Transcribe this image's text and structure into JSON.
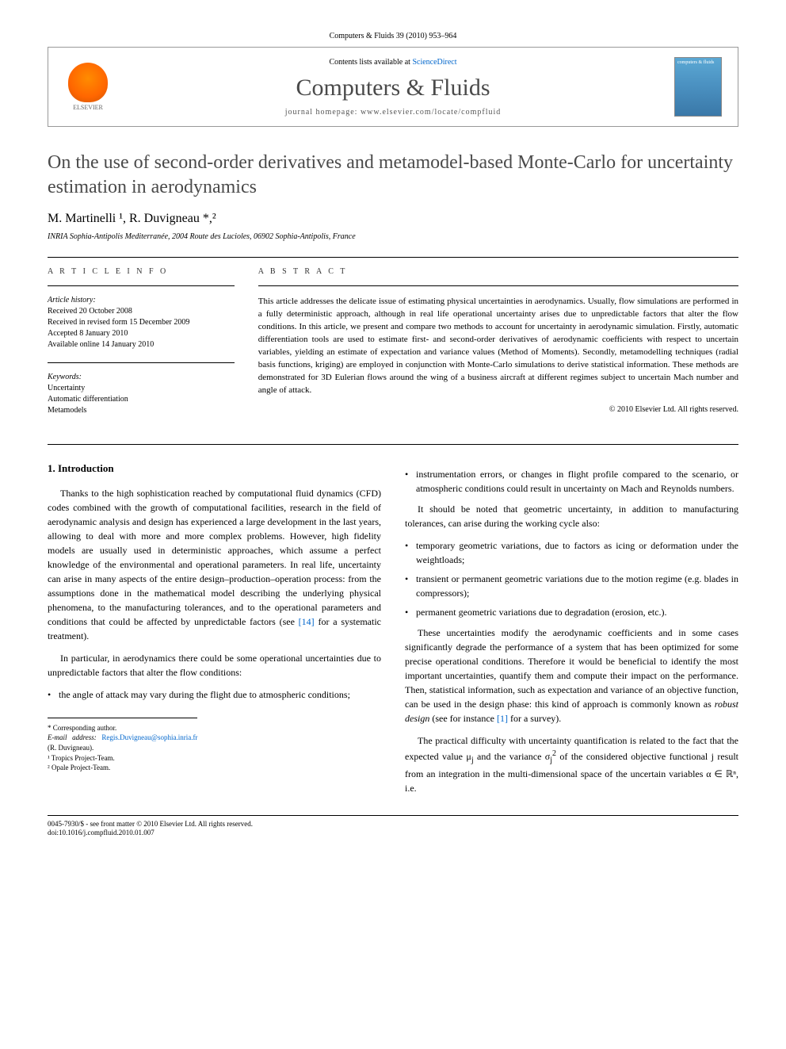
{
  "journal_ref": "Computers & Fluids 39 (2010) 953–964",
  "sciencedirect": {
    "contents_prefix": "Contents lists available at ",
    "contents_link": "ScienceDirect",
    "journal_name": "Computers & Fluids",
    "homepage_prefix": "journal homepage: ",
    "homepage_url": "www.elsevier.com/locate/compfluid",
    "publisher": "ELSEVIER",
    "cover_text": "computers & fluids"
  },
  "title": "On the use of second-order derivatives and metamodel-based Monte-Carlo for uncertainty estimation in aerodynamics",
  "authors": "M. Martinelli ¹, R. Duvigneau *,²",
  "affiliation": "INRIA Sophia-Antipolis Mediterranée, 2004 Route des Lucioles, 06902 Sophia-Antipolis, France",
  "article_info": {
    "label": "A R T I C L E   I N F O",
    "history_heading": "Article history:",
    "received": "Received 20 October 2008",
    "revised": "Received in revised form 15 December 2009",
    "accepted": "Accepted 8 January 2010",
    "online": "Available online 14 January 2010",
    "keywords_heading": "Keywords:",
    "kw1": "Uncertainty",
    "kw2": "Automatic differentiation",
    "kw3": "Metamodels"
  },
  "abstract": {
    "label": "A B S T R A C T",
    "text": "This article addresses the delicate issue of estimating physical uncertainties in aerodynamics. Usually, flow simulations are performed in a fully deterministic approach, although in real life operational uncertainty arises due to unpredictable factors that alter the flow conditions. In this article, we present and compare two methods to account for uncertainty in aerodynamic simulation. Firstly, automatic differentiation tools are used to estimate first- and second-order derivatives of aerodynamic coefficients with respect to uncertain variables, yielding an estimate of expectation and variance values (Method of Moments). Secondly, metamodelling techniques (radial basis functions, kriging) are employed in conjunction with Monte-Carlo simulations to derive statistical information. These methods are demonstrated for 3D Eulerian flows around the wing of a business aircraft at different regimes subject to uncertain Mach number and angle of attack.",
    "copyright": "© 2010 Elsevier Ltd. All rights reserved."
  },
  "body": {
    "intro_heading": "1. Introduction",
    "p1": "Thanks to the high sophistication reached by computational fluid dynamics (CFD) codes combined with the growth of computational facilities, research in the field of aerodynamic analysis and design has experienced a large development in the last years, allowing to deal with more and more complex problems. However, high fidelity models are usually used in deterministic approaches, which assume a perfect knowledge of the environmental and operational parameters. In real life, uncertainty can arise in many aspects of the entire design–production–operation process: from the assumptions done in the mathematical model describing the underlying physical phenomena, to the manufacturing tolerances, and to the operational parameters and conditions that could be affected by unpredictable factors (see ",
    "p1_ref": "[14]",
    "p1_tail": " for a systematic treatment).",
    "p2": "In particular, in aerodynamics there could be some operational uncertainties due to unpredictable factors that alter the flow conditions:",
    "li1": "the angle of attack may vary during the flight due to atmospheric conditions;",
    "li2": "instrumentation errors, or changes in flight profile compared to the scenario, or atmospheric conditions could result in uncertainty on Mach and Reynolds numbers.",
    "p3": "It should be noted that geometric uncertainty, in addition to manufacturing tolerances, can arise during the working cycle also:",
    "li3": "temporary geometric variations, due to factors as icing or deformation under the weightloads;",
    "li4": "transient or permanent geometric variations due to the motion regime (e.g. blades in compressors);",
    "li5": "permanent geometric variations due to degradation (erosion, etc.).",
    "p4": "These uncertainties modify the aerodynamic coefficients and in some cases significantly degrade the performance of a system that has been optimized for some precise operational conditions. Therefore it would be beneficial to identify the most important uncertainties, quantify them and compute their impact on the performance. Then, statistical information, such as expectation and variance of an objective function, can be used in the design phase: this kind of approach is commonly known as ",
    "p4_ital": "robust design",
    "p4_mid": " (see for instance ",
    "p4_ref": "[1]",
    "p4_tail": " for a survey).",
    "p5a": "The practical difficulty with uncertainty quantification is related to the fact that the expected value μ",
    "p5_sub1": "j",
    "p5b": " and the variance σ",
    "p5_sub2": "j",
    "p5_sup": "2",
    "p5c": " of the considered objective functional j result from an integration in the multi-dimensional space of the uncertain variables α ∈ ℝⁿ, i.e."
  },
  "footnotes": {
    "corr": "* Corresponding author.",
    "email_label": "E-mail address: ",
    "email": "Regis.Duvigneau@sophia.inria.fr",
    "email_tail": " (R. Duvigneau).",
    "fn1": "¹ Tropics Project-Team.",
    "fn2": "² Opale Project-Team."
  },
  "bottom": {
    "issn": "0045-7930/$ - see front matter © 2010 Elsevier Ltd. All rights reserved.",
    "doi": "doi:10.1016/j.compfluid.2010.01.007"
  },
  "colors": {
    "text": "#000000",
    "link": "#0066cc",
    "title_gray": "#4a4a4a",
    "logo_orange": "#ff6600",
    "cover_blue": "#4a90c0"
  }
}
